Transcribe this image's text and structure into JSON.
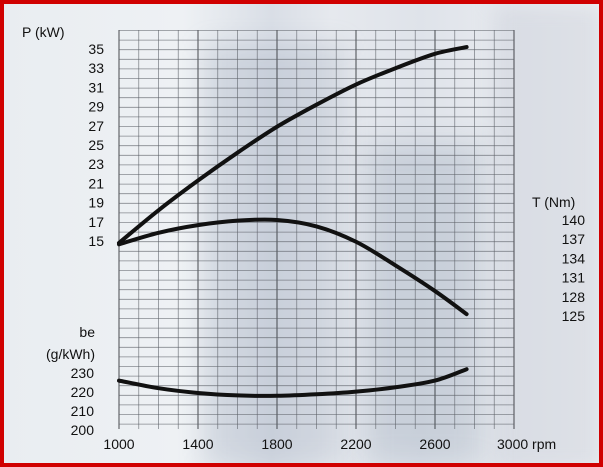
{
  "chart_data": {
    "type": "line",
    "x_ticks": [
      "1000",
      "1400",
      "1800",
      "2200",
      "2600",
      "3000 rpm"
    ],
    "x_range": [
      1000,
      3000
    ],
    "power_axis": {
      "label": "P (kW)",
      "ticks": [
        "35",
        "33",
        "31",
        "29",
        "27",
        "25",
        "23",
        "21",
        "19",
        "17",
        "15"
      ],
      "values": [
        35,
        33,
        31,
        29,
        27,
        25,
        23,
        21,
        19,
        17,
        15
      ]
    },
    "torque_axis": {
      "label": "T (Nm)",
      "ticks": [
        "140",
        "137",
        "134",
        "131",
        "128",
        "125"
      ],
      "values": [
        140,
        137,
        134,
        131,
        128,
        125
      ]
    },
    "be_axis": {
      "label_line1": "be",
      "label_line2": "(g/kWh)",
      "ticks": [
        "230",
        "220",
        "210",
        "200"
      ],
      "values": [
        230,
        220,
        210,
        200
      ]
    },
    "series": [
      {
        "axis": "power",
        "x": [
          1000,
          1200,
          1400,
          1600,
          1800,
          2000,
          2200,
          2400,
          2600,
          2760
        ],
        "y": [
          14.8,
          18.2,
          21.3,
          24.2,
          26.9,
          29.2,
          31.3,
          33.0,
          34.5,
          35.2
        ]
      },
      {
        "axis": "torque",
        "x": [
          1000,
          1200,
          1400,
          1600,
          1800,
          2000,
          2200,
          2400,
          2600,
          2760
        ],
        "y": [
          136.2,
          138.0,
          139.2,
          139.9,
          140.0,
          139.0,
          136.6,
          132.9,
          128.9,
          125.3
        ]
      },
      {
        "axis": "be",
        "x": [
          1000,
          1200,
          1400,
          1600,
          1800,
          2000,
          2200,
          2400,
          2600,
          2760
        ],
        "y": [
          226,
          222,
          219.5,
          218.2,
          218,
          218.8,
          220.2,
          222.5,
          226,
          232
        ]
      }
    ],
    "grid": true
  }
}
